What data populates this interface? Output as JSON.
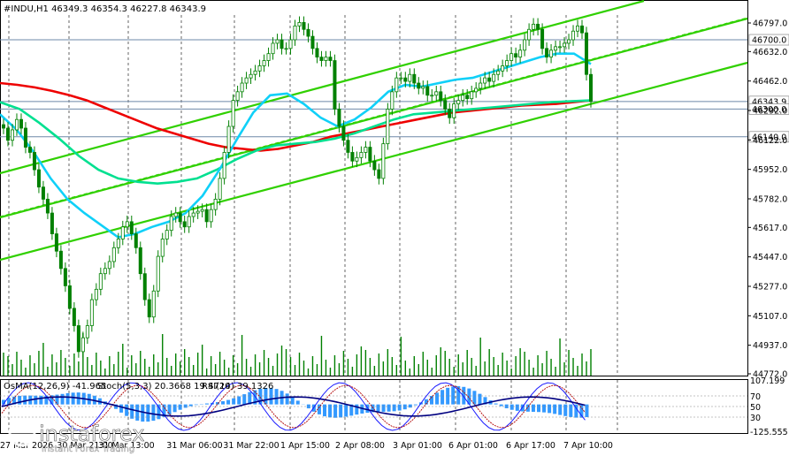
{
  "header": {
    "symbol_line": "#INDU,H1  46349.3 46354.3 46227.8 46343.9",
    "indicator_line_osma": "OsMA(12,26,9) -41.965",
    "indicator_line_stoch": "Stoch(5,3,3) 20.3668 19.4720",
    "indicator_line_rsi": "RSI(14) 39.1326"
  },
  "watermark": {
    "brand": "instaforex",
    "tagline": "Instant Forex Trading"
  },
  "colors": {
    "background": "#ffffff",
    "candle": "#008000",
    "ma_slow": "#ee0000",
    "ma_mid": "#00e090",
    "ma_fast": "#10d0f8",
    "channel": "#30d000",
    "grid": "#000000",
    "level_line": "#6e88a8",
    "osma_bar": "#3399ff",
    "stoch_main": "#1a1aff",
    "stoch_signal": "#b00000",
    "rsi": "#000080"
  },
  "chart_data": {
    "type": "candlestick",
    "symbol": "#INDU",
    "timeframe": "H1",
    "last": {
      "open": 46349.3,
      "high": 46354.3,
      "low": 46227.8,
      "close": 46343.9
    },
    "x_ticks": [
      "27 Mar 2026",
      "30 Mar 21:00",
      "31 Mar 13:00",
      "31 Mar 06:00",
      "31 Mar 22:00",
      "1 Apr 15:00",
      "2 Apr 08:00",
      "3 Apr 01:00",
      "6 Apr 01:00",
      "6 Apr 17:00",
      "7 Apr 10:00"
    ],
    "y_ticks": [
      46797.0,
      46632.0,
      46462.0,
      46292.0,
      46122.0,
      45952.0,
      45782.0,
      45617.0,
      45447.0,
      45277.0,
      45107.0,
      44937.0,
      44772.0
    ],
    "ylim": [
      44772.0,
      46797.0
    ],
    "levels": [
      {
        "value": 46700.0,
        "label": "46700.0",
        "style": "box"
      },
      {
        "value": 46343.9,
        "label": "46343.9",
        "style": "box"
      },
      {
        "value": 46300.0,
        "label": "46300.0",
        "style": "box"
      },
      {
        "value": 46140.0,
        "label": "46140.0",
        "style": "box"
      }
    ],
    "close": [
      46190,
      46120,
      46180,
      46240,
      46190,
      46080,
      46050,
      45950,
      45850,
      45780,
      45700,
      45580,
      45480,
      45380,
      45280,
      45150,
      45050,
      44900,
      44980,
      45050,
      45200,
      45260,
      45350,
      45380,
      45420,
      45500,
      45550,
      45620,
      45650,
      45580,
      45500,
      45350,
      45200,
      45100,
      45250,
      45450,
      45550,
      45600,
      45680,
      45700,
      45650,
      45620,
      45680,
      45700,
      45710,
      45720,
      45650,
      45720,
      45780,
      45900,
      46050,
      46200,
      46350,
      46400,
      46450,
      46480,
      46500,
      46520,
      46550,
      46580,
      46620,
      46680,
      46700,
      46650,
      46650,
      46700,
      46780,
      46800,
      46760,
      46720,
      46650,
      46600,
      46580,
      46600,
      46580,
      46300,
      46200,
      46120,
      46050,
      46000,
      46020,
      46050,
      46080,
      46000,
      45950,
      45900,
      46100,
      46300,
      46400,
      46480,
      46480,
      46460,
      46500,
      46450,
      46420,
      46430,
      46380,
      46380,
      46400,
      46350,
      46300,
      46250,
      46330,
      46350,
      46380,
      46360,
      46400,
      46420,
      46450,
      46480,
      46460,
      46500,
      46520,
      46550,
      46580,
      46620,
      46600,
      46640,
      46700,
      46760,
      46790,
      46760,
      46650,
      46600,
      46640,
      46660,
      46660,
      46680,
      46700,
      46750,
      46780,
      46740,
      46500,
      46343.9
    ],
    "ma_slow": {
      "start_index": 0,
      "values_note": "",
      "values": [
        46450,
        46440,
        46425,
        46405,
        46380,
        46350,
        46310,
        46270,
        46230,
        46190,
        46160,
        46130,
        46100,
        46080,
        46070,
        46060,
        46070,
        46090,
        46110,
        46140,
        46160,
        46180,
        46200,
        46220,
        46240,
        46260,
        46280,
        46290,
        46300,
        46310,
        46320,
        46325,
        46330,
        46340,
        46350
      ]
    },
    "ma_mid": {
      "values": [
        46340,
        46300,
        46220,
        46130,
        46030,
        45950,
        45900,
        45880,
        45870,
        45880,
        45900,
        45950,
        46010,
        46060,
        46090,
        46100,
        46110,
        46130,
        46160,
        46200,
        46240,
        46270,
        46280,
        46290,
        46300,
        46310,
        46320,
        46330,
        46340,
        46345,
        46350
      ]
    },
    "ma_fast": {
      "values": [
        46270,
        46180,
        46050,
        45900,
        45780,
        45700,
        45630,
        45560,
        45580,
        45620,
        45650,
        45700,
        45800,
        45950,
        46120,
        46280,
        46380,
        46390,
        46330,
        46250,
        46200,
        46240,
        46310,
        46400,
        46440,
        46430,
        46450,
        46470,
        46480,
        46510,
        46540,
        46570,
        46600,
        46620,
        46620,
        46560
      ]
    },
    "indicators": {
      "osma_range": [
        -125.555,
        107.199
      ],
      "osma_ticks": [
        "107.199",
        "70",
        "50",
        "30",
        "-125.555"
      ]
    }
  }
}
